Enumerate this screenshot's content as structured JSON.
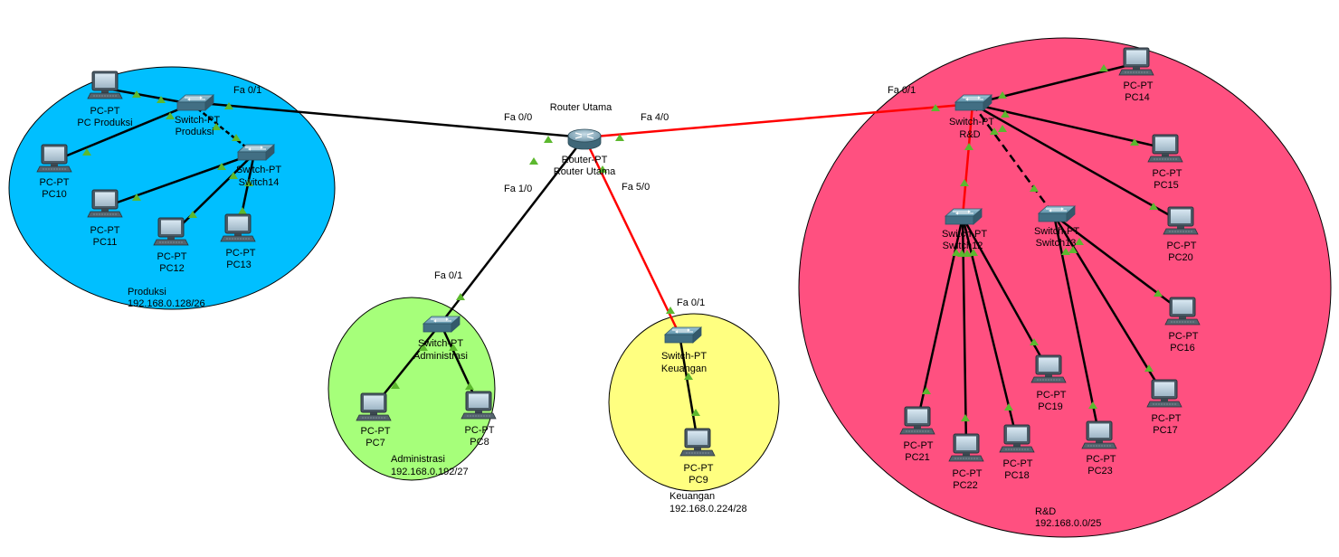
{
  "router": {
    "title": "Router Utama",
    "type": "Router-PT",
    "name": "Router Utama"
  },
  "ports": {
    "r_fa00": "Fa 0/0",
    "r_fa10": "Fa 1/0",
    "r_fa40": "Fa 4/0",
    "r_fa50": "Fa 5/0",
    "produksi_fa01": "Fa 0/1",
    "administrasi_fa01": "Fa 0/1",
    "keuangan_fa01": "Fa 0/1",
    "rnd_fa01": "Fa 0/1"
  },
  "zones": {
    "produksi": {
      "name": "Produksi",
      "subnet": "192.168.0.128/26",
      "color": "#00bfff"
    },
    "administrasi": {
      "name": "Administrasi",
      "subnet": "192.168.0.192/27",
      "color": "#a6ff7a"
    },
    "keuangan": {
      "name": "Keuangan",
      "subnet": "192.168.0.224/28",
      "color": "#ffff80"
    },
    "rnd": {
      "name": "R&D",
      "subnet": "192.168.0.0/25",
      "color": "#ff5080"
    }
  },
  "switches": {
    "produksi": {
      "type": "Switch-PT",
      "name": "Produksi"
    },
    "switch14": {
      "type": "Switch-PT",
      "name": "Switch14"
    },
    "administrasi": {
      "type": "Switch-PT",
      "name": "Administrasi"
    },
    "keuangan": {
      "type": "Switch-PT",
      "name": "Keuangan"
    },
    "rnd": {
      "type": "Switch-PT",
      "name": "R&D"
    },
    "switch12": {
      "type": "Switch-PT",
      "name": "Switch12"
    },
    "switch13": {
      "type": "Switch-PT",
      "name": "Switch13"
    }
  },
  "pcs": {
    "pc_produksi": {
      "type": "PC-PT",
      "name": "PC Produksi"
    },
    "pc10": {
      "type": "PC-PT",
      "name": "PC10"
    },
    "pc11": {
      "type": "PC-PT",
      "name": "PC11"
    },
    "pc12": {
      "type": "PC-PT",
      "name": "PC12"
    },
    "pc13": {
      "type": "PC-PT",
      "name": "PC13"
    },
    "pc7": {
      "type": "PC-PT",
      "name": "PC7"
    },
    "pc8": {
      "type": "PC-PT",
      "name": "PC8"
    },
    "pc9": {
      "type": "PC-PT",
      "name": "PC9"
    },
    "pc14": {
      "type": "PC-PT",
      "name": "PC14"
    },
    "pc15": {
      "type": "PC-PT",
      "name": "PC15"
    },
    "pc20": {
      "type": "PC-PT",
      "name": "PC20"
    },
    "pc16": {
      "type": "PC-PT",
      "name": "PC16"
    },
    "pc17": {
      "type": "PC-PT",
      "name": "PC17"
    },
    "pc19": {
      "type": "PC-PT",
      "name": "PC19"
    },
    "pc18": {
      "type": "PC-PT",
      "name": "PC18"
    },
    "pc21": {
      "type": "PC-PT",
      "name": "PC21"
    },
    "pc22": {
      "type": "PC-PT",
      "name": "PC22"
    },
    "pc23": {
      "type": "PC-PT",
      "name": "PC23"
    }
  },
  "colors": {
    "link": "#000000",
    "link_red": "#ff0000",
    "port_up": "#5cb82e"
  }
}
